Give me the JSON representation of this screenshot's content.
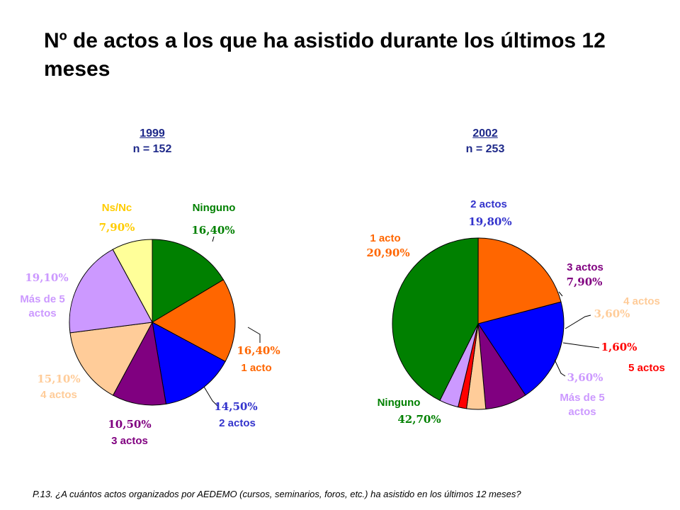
{
  "title": "Nº de actos a los que ha asistido durante los últimos 12 meses",
  "footer": "P.13. ¿A cuántos actos organizados por AEDEMO (cursos, seminarios, foros, etc.) ha asistido en los últimos 12 meses?",
  "colors": {
    "Ninguno": "#008000",
    "1 acto": "#ff6600",
    "2 actos": "#0000ff",
    "3 actos": "#800080",
    "4 actos": "#ffcc99",
    "5 actos": "#ff0000",
    "Más de 5 actos": "#cc99ff",
    "Ns/Nc": "#ffff99"
  },
  "label_colors": {
    "Ninguno": "#008000",
    "1 acto": "#ff6600",
    "2 actos": "#3333cc",
    "3 actos": "#800080",
    "4 actos": "#ffcc99",
    "5 actos": "#ff0000",
    "Más de 5 actos": "#cc99ff",
    "Ns/Nc": "#ffcc00"
  },
  "chart_data": [
    {
      "type": "pie",
      "year": "1999",
      "n_label": "n = 152",
      "slices": [
        {
          "name": "Ninguno",
          "value": 16.4,
          "label": "16,40%",
          "legend": [
            "Ninguno"
          ]
        },
        {
          "name": "1 acto",
          "value": 16.4,
          "label": "16,40%",
          "legend": [
            "1 acto"
          ]
        },
        {
          "name": "2 actos",
          "value": 14.5,
          "label": "14,50%",
          "legend": [
            "2 actos"
          ]
        },
        {
          "name": "3 actos",
          "value": 10.5,
          "label": "10,50%",
          "legend": [
            "3 actos"
          ]
        },
        {
          "name": "4 actos",
          "value": 15.1,
          "label": "15,10%",
          "legend": [
            "4 actos"
          ]
        },
        {
          "name": "Más de 5 actos",
          "value": 19.1,
          "label": "19,10%",
          "legend": [
            "Más de 5",
            "actos"
          ]
        },
        {
          "name": "Ns/Nc",
          "value": 7.9,
          "label": "7,90%",
          "legend": [
            "Ns/Nc"
          ]
        }
      ]
    },
    {
      "type": "pie",
      "year": "2002",
      "n_label": "n = 253",
      "slices": [
        {
          "name": "2 actos",
          "value": 19.8,
          "label": "19,80%",
          "legend": [
            "2 actos"
          ]
        },
        {
          "name": "3 actos",
          "value": 7.9,
          "label": "7,90%",
          "legend": [
            "3 actos"
          ]
        },
        {
          "name": "4 actos",
          "value": 3.6,
          "label": "3,60%",
          "legend": [
            "4 actos"
          ]
        },
        {
          "name": "5 actos",
          "value": 1.6,
          "label": "1,60%",
          "legend": [
            "5 actos"
          ]
        },
        {
          "name": "Más de 5 actos",
          "value": 3.6,
          "label": "3,60%",
          "legend": [
            "Más de 5",
            "actos"
          ]
        },
        {
          "name": "Ninguno",
          "value": 42.7,
          "label": "42,70%",
          "legend": [
            "Ninguno"
          ]
        },
        {
          "name": "1 acto",
          "value": 20.9,
          "label": "20,90%",
          "legend": [
            "1 acto"
          ]
        }
      ]
    }
  ]
}
